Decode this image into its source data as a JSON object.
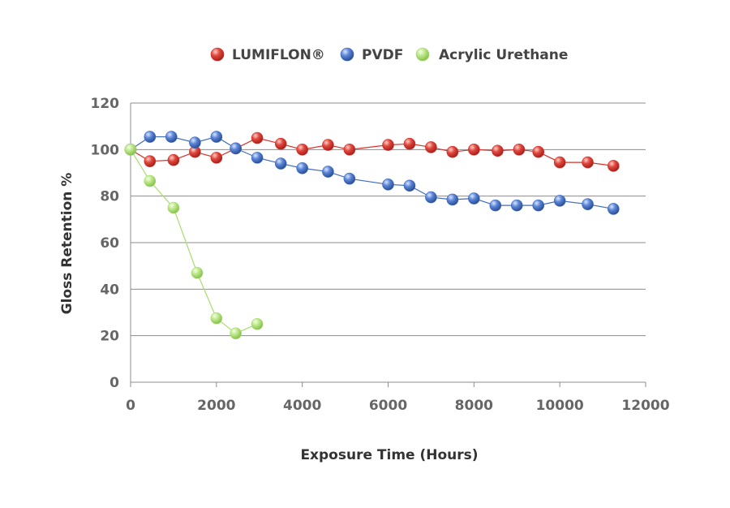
{
  "chart_data": {
    "type": "line",
    "xlabel": "Exposure Time (Hours)",
    "ylabel": "Gloss Retention %",
    "xlim": [
      0,
      12000
    ],
    "ylim": [
      0,
      120
    ],
    "x_ticks": [
      0,
      2000,
      4000,
      6000,
      8000,
      10000,
      12000
    ],
    "y_ticks": [
      0,
      20,
      40,
      60,
      80,
      100,
      120
    ],
    "grid": "horizontal",
    "legend": "top-center",
    "series": [
      {
        "name": "LUMIFLON®",
        "color": "#d9312b",
        "points": [
          [
            0,
            100
          ],
          [
            450,
            95
          ],
          [
            1000,
            95.5
          ],
          [
            1500,
            99
          ],
          [
            2000,
            96.5
          ],
          [
            2450,
            100.5
          ],
          [
            2950,
            105
          ],
          [
            3500,
            102.5
          ],
          [
            4000,
            100
          ],
          [
            4600,
            102
          ],
          [
            5100,
            100
          ],
          [
            6000,
            102
          ],
          [
            6500,
            102.5
          ],
          [
            7000,
            101
          ],
          [
            7500,
            99
          ],
          [
            8000,
            100
          ],
          [
            8550,
            99.5
          ],
          [
            9050,
            100
          ],
          [
            9500,
            99
          ],
          [
            10000,
            94.5
          ],
          [
            10650,
            94.5
          ],
          [
            11250,
            93
          ]
        ]
      },
      {
        "name": "PVDF",
        "color": "#3f6cc0",
        "points": [
          [
            0,
            100
          ],
          [
            450,
            105.5
          ],
          [
            950,
            105.5
          ],
          [
            1500,
            103
          ],
          [
            2000,
            105.5
          ],
          [
            2450,
            100.5
          ],
          [
            2950,
            96.5
          ],
          [
            3500,
            94
          ],
          [
            4000,
            92
          ],
          [
            4600,
            90.5
          ],
          [
            5100,
            87.5
          ],
          [
            6000,
            85
          ],
          [
            6500,
            84.5
          ],
          [
            7000,
            79.5
          ],
          [
            7500,
            78.5
          ],
          [
            8000,
            79
          ],
          [
            8500,
            76
          ],
          [
            9000,
            76
          ],
          [
            9500,
            76
          ],
          [
            10000,
            78
          ],
          [
            10650,
            76.5
          ],
          [
            11250,
            74.5
          ]
        ]
      },
      {
        "name": "Acrylic Urethane",
        "color": "#a9dc6e",
        "points": [
          [
            0,
            100
          ],
          [
            450,
            86.5
          ],
          [
            1000,
            75
          ],
          [
            1550,
            47
          ],
          [
            2000,
            27.5
          ],
          [
            2450,
            21
          ],
          [
            2950,
            25
          ]
        ]
      }
    ]
  }
}
